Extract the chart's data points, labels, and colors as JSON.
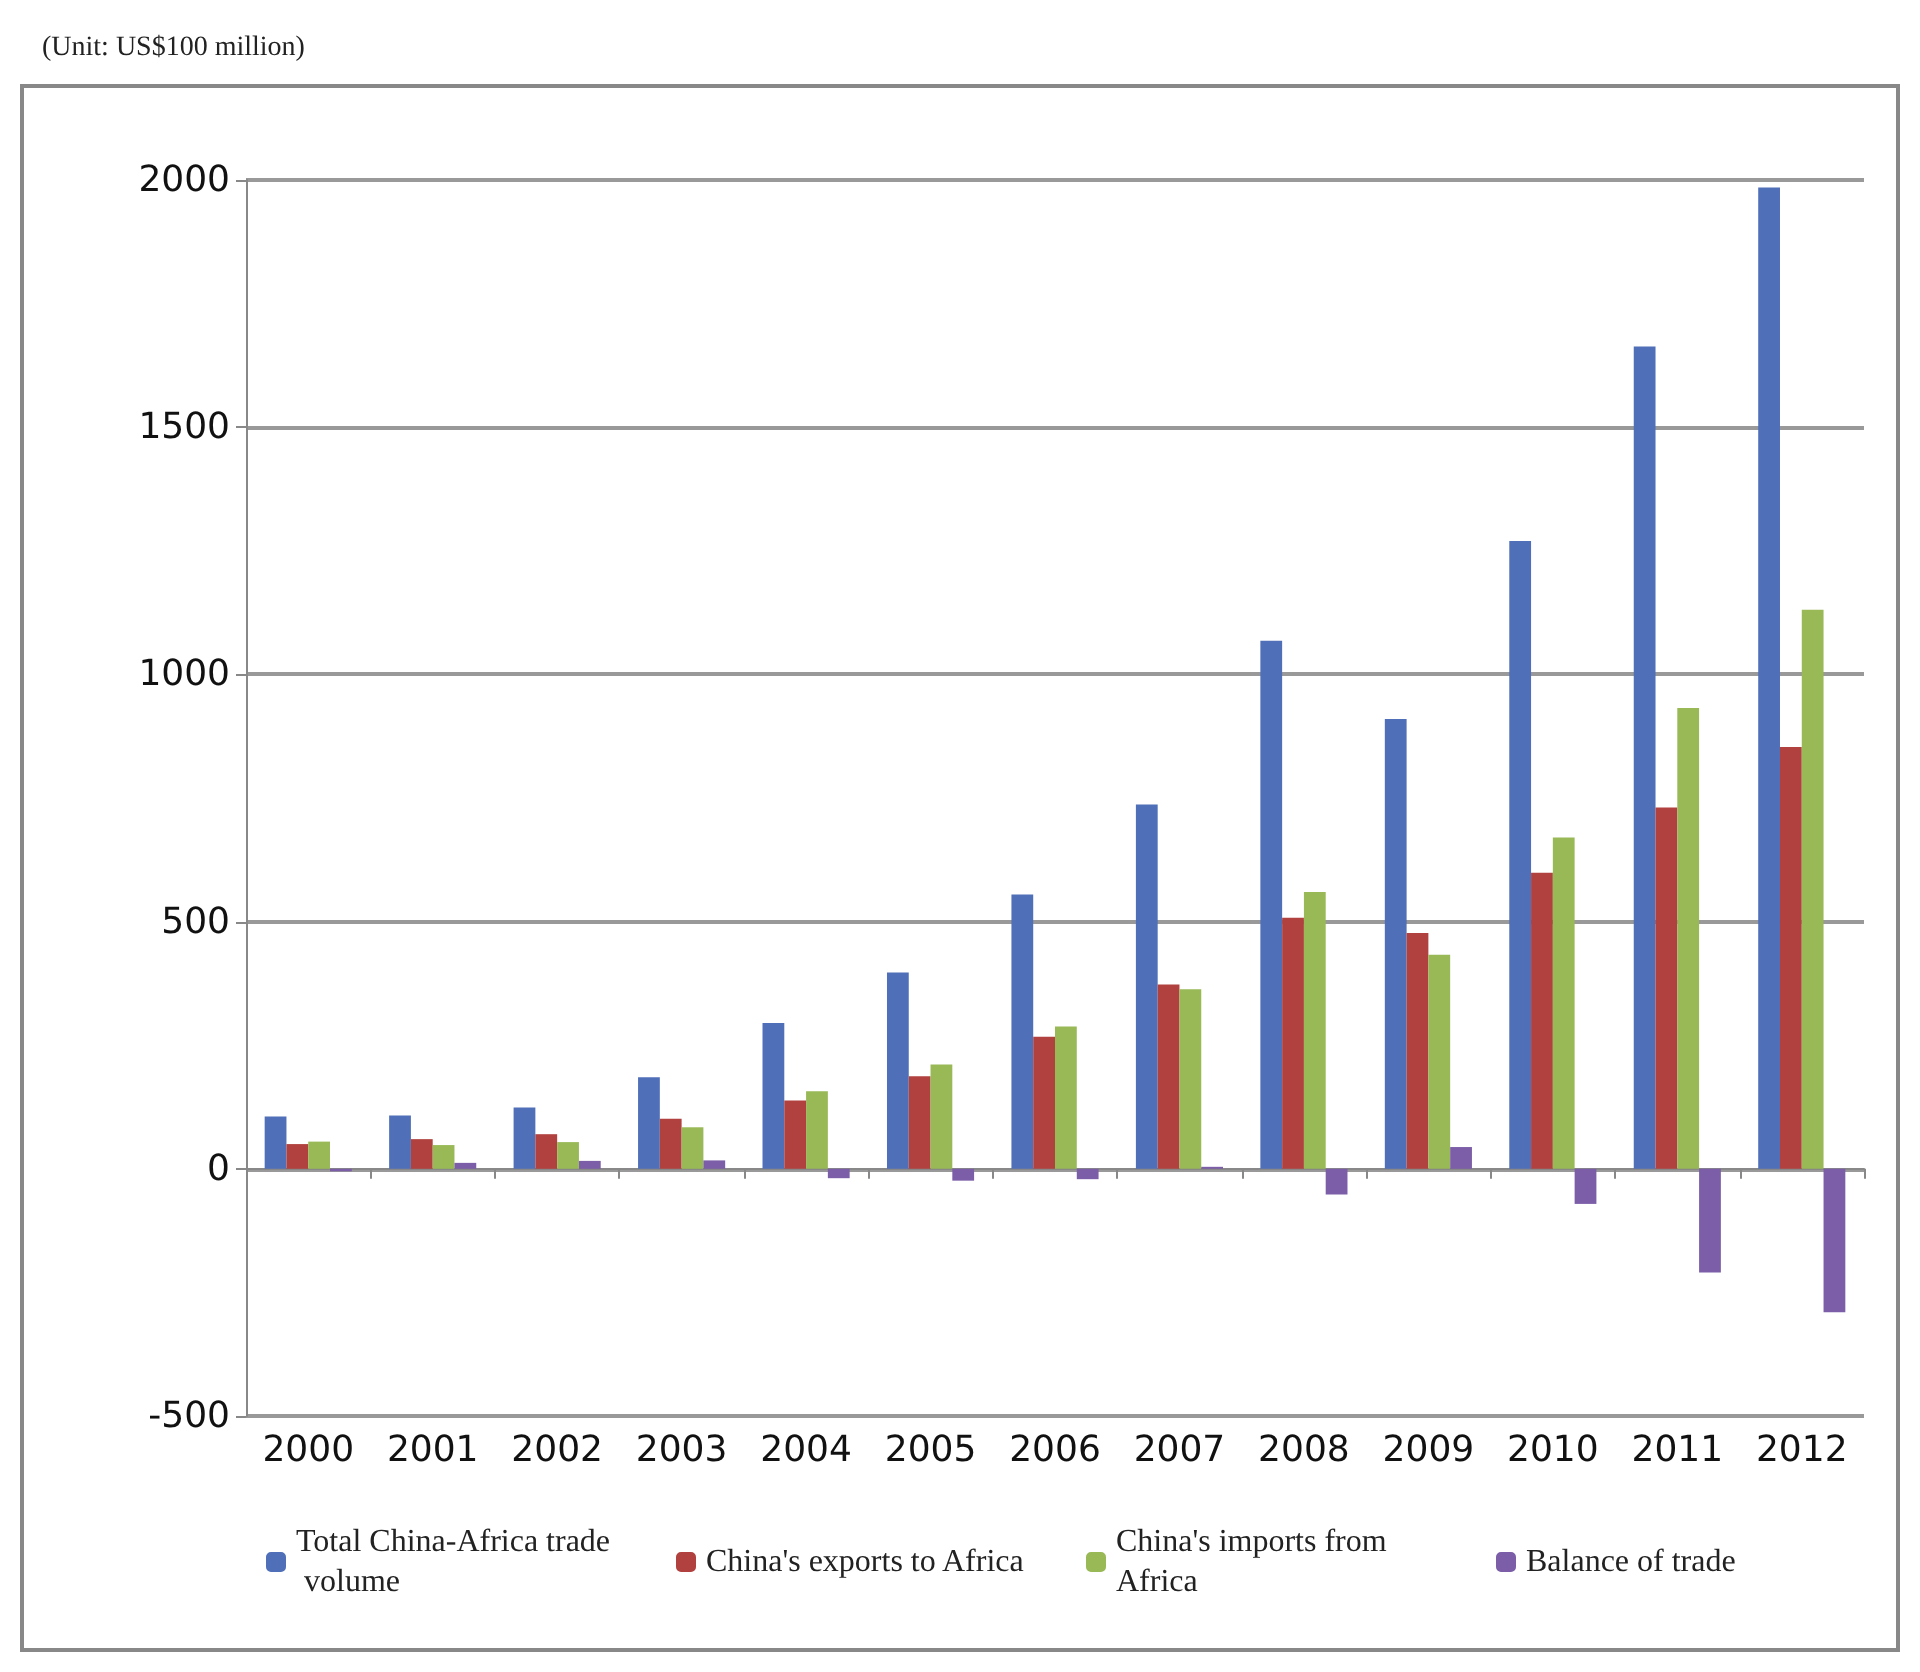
{
  "chart_data": {
    "type": "bar",
    "ylabel": "(Unit: US$100 million)",
    "categories": [
      "2000",
      "2001",
      "2002",
      "2003",
      "2004",
      "2005",
      "2006",
      "2007",
      "2008",
      "2009",
      "2010",
      "2011",
      "2012"
    ],
    "series": [
      {
        "name": "Total China-Africa trade volume",
        "color": "#4f6fb8",
        "values": [
          106,
          108,
          124,
          185,
          295,
          397,
          555,
          737,
          1068,
          910,
          1270,
          1663,
          1985
        ]
      },
      {
        "name": "China's exports to Africa",
        "color": "#b0413e",
        "values": [
          50,
          60,
          70,
          101,
          138,
          187,
          267,
          373,
          508,
          477,
          599,
          731,
          853
        ]
      },
      {
        "name": "China's imports from Africa",
        "color": "#98b956",
        "values": [
          55,
          48,
          54,
          84,
          157,
          211,
          288,
          363,
          560,
          433,
          670,
          932,
          1131
        ]
      },
      {
        "name": "Balance of trade",
        "color": "#7b5ea7",
        "values": [
          -5,
          12,
          16,
          17,
          -19,
          -24,
          -21,
          4,
          -52,
          44,
          -71,
          -210,
          -290
        ]
      }
    ],
    "ylim": [
      -500,
      2000
    ],
    "yticks": [
      -500,
      0,
      500,
      1000,
      1500,
      2000
    ],
    "grid": "y",
    "legend": "bottom"
  }
}
